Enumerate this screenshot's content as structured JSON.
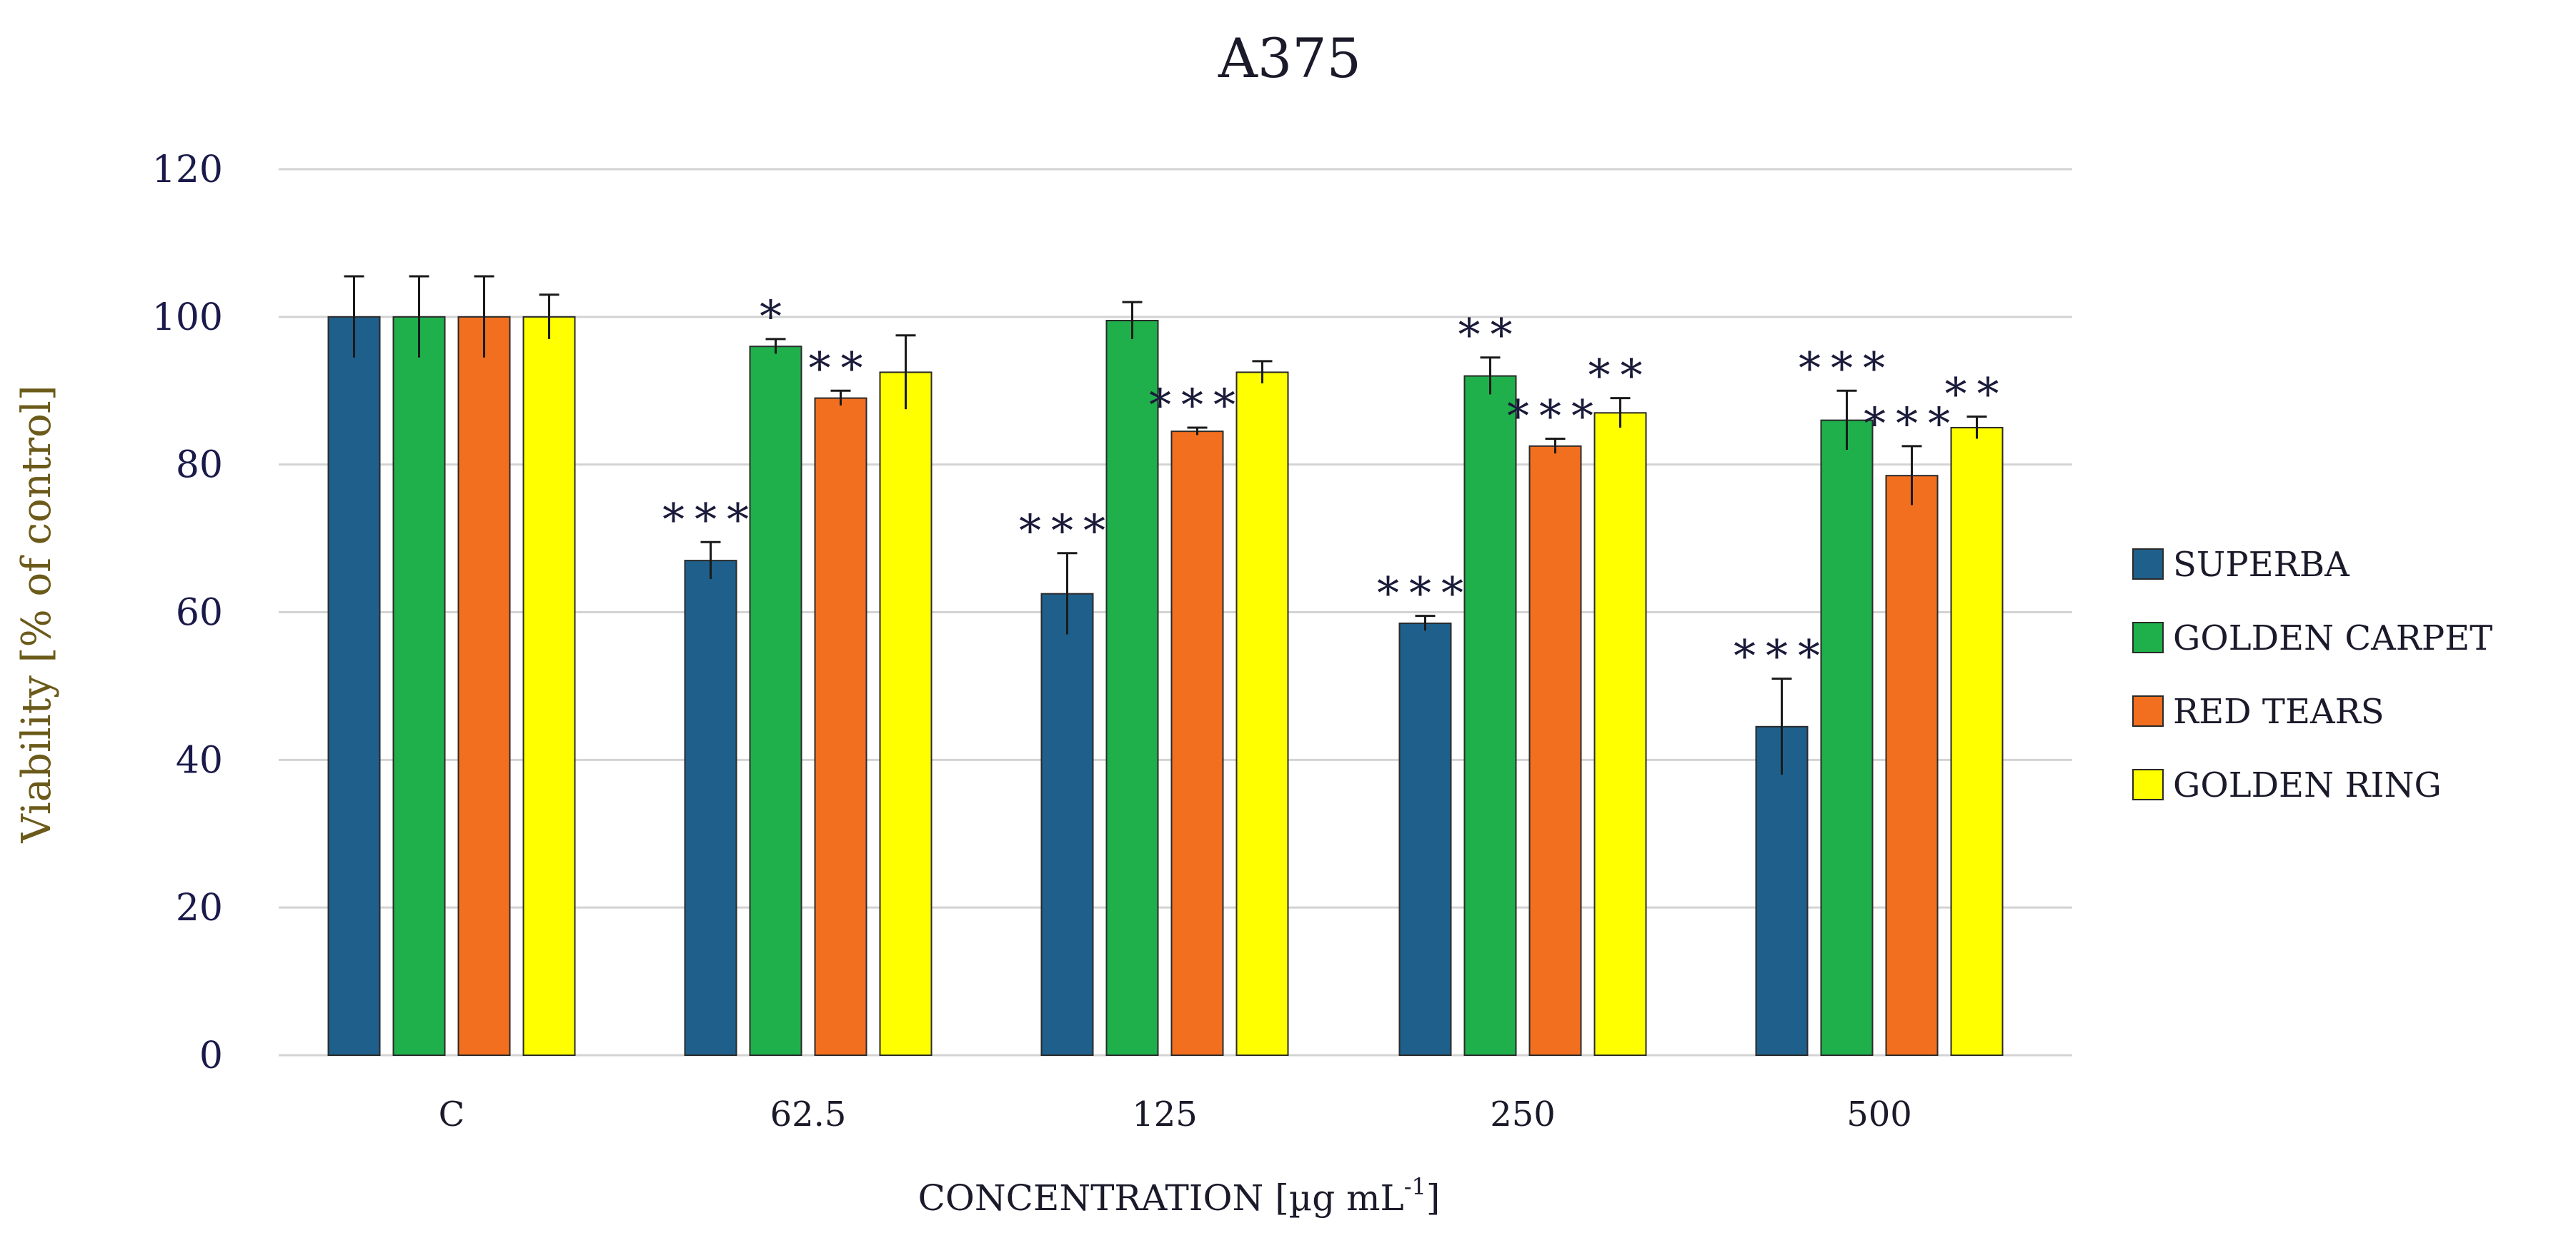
{
  "chart_data": {
    "type": "bar",
    "title": "A375",
    "xlabel": "CONCENTRATION  [µg mL",
    "xlabel_sup": "-1",
    "xlabel_end": "]",
    "ylabel": "Viability  [% of control]",
    "ylim": [
      0,
      120
    ],
    "yticks": [
      "0",
      "20",
      "40",
      "60",
      "80",
      "100",
      "120"
    ],
    "grid": true,
    "legend_position": "right",
    "categories": [
      "C",
      "62.5",
      "125",
      "250",
      "500"
    ],
    "series": [
      {
        "name": "SUPERBA",
        "color": "#1f5f8b",
        "values": [
          100,
          67,
          62.5,
          58.5,
          44.5
        ],
        "errors": [
          5.5,
          2.5,
          5.5,
          1,
          6.5
        ],
        "significance": [
          "",
          "***",
          "***",
          "***",
          "***"
        ]
      },
      {
        "name": "GOLDEN CARPET",
        "color": "#1fb04b",
        "values": [
          100,
          96,
          99.5,
          92,
          86
        ],
        "errors": [
          5.5,
          1,
          2.5,
          2.5,
          4
        ],
        "significance": [
          "",
          "*",
          "",
          "**",
          "***"
        ]
      },
      {
        "name": "RED TEARS",
        "color": "#f26f1f",
        "values": [
          100,
          89,
          84.5,
          82.5,
          78.5
        ],
        "errors": [
          5.5,
          1,
          0.5,
          1,
          4
        ],
        "significance": [
          "",
          "**",
          "***",
          "***",
          "***"
        ]
      },
      {
        "name": "GOLDEN RING",
        "color": "#ffff00",
        "values": [
          100,
          92.5,
          92.5,
          87,
          85
        ],
        "errors": [
          3,
          5,
          1.5,
          2,
          1.5
        ],
        "significance": [
          "",
          "",
          "",
          "**",
          "**"
        ]
      }
    ]
  },
  "colors": {
    "grid": "#d3d3d3",
    "axis_text": "#1a1a4a",
    "ylabel_color": "#6b5a1a",
    "bar_stroke": "#2a2a2a"
  }
}
